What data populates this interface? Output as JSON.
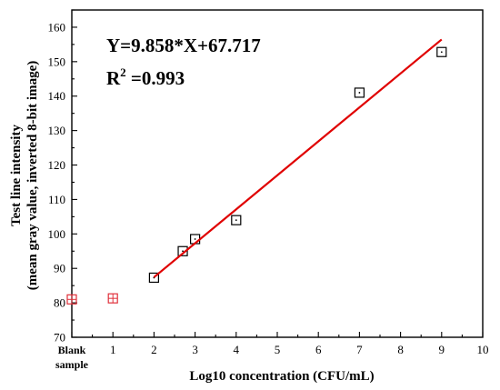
{
  "chart_data": {
    "type": "scatter",
    "xlabel": "Log10 concentration (CFU/mL)",
    "ylabel_line1": "Test line intensity",
    "ylabel_line2": "(mean gray value, inverted 8-bit image)",
    "xlim": [
      0,
      10
    ],
    "ylim": [
      70,
      165
    ],
    "x_ticks": [
      {
        "value": 0,
        "label": "Blank"
      },
      {
        "value": 1,
        "label": "1"
      },
      {
        "value": 2,
        "label": "2"
      },
      {
        "value": 3,
        "label": "3"
      },
      {
        "value": 4,
        "label": "4"
      },
      {
        "value": 5,
        "label": "5"
      },
      {
        "value": 6,
        "label": "6"
      },
      {
        "value": 7,
        "label": "7"
      },
      {
        "value": 8,
        "label": "8"
      },
      {
        "value": 9,
        "label": "9"
      },
      {
        "value": 10,
        "label": "10"
      }
    ],
    "blank_label_line2": "sample",
    "y_ticks": [
      70,
      80,
      90,
      100,
      110,
      120,
      130,
      140,
      150,
      160
    ],
    "grid": false,
    "annotations": {
      "equation": "Y=9.858*X+67.717",
      "r2_prefix": "R",
      "r2_sup": "2",
      "r2_value": " =0.993"
    },
    "series": [
      {
        "kind": "points",
        "marker": "square",
        "color": "#000000",
        "points": [
          {
            "x": 2,
            "y": 87.3
          },
          {
            "x": 2.7,
            "y": 95.0
          },
          {
            "x": 3,
            "y": 98.5
          },
          {
            "x": 4,
            "y": 104.0
          },
          {
            "x": 7,
            "y": 141.0
          },
          {
            "x": 9,
            "y": 152.8
          }
        ]
      },
      {
        "kind": "points",
        "marker": "square-cross",
        "color": "#e0303a",
        "points": [
          {
            "x": 0,
            "y": 81.0
          },
          {
            "x": 1,
            "y": 81.3
          }
        ]
      },
      {
        "kind": "fit-line",
        "color": "#e00000",
        "slope": 9.858,
        "intercept": 67.717,
        "x_range": [
          2,
          9
        ]
      }
    ]
  }
}
